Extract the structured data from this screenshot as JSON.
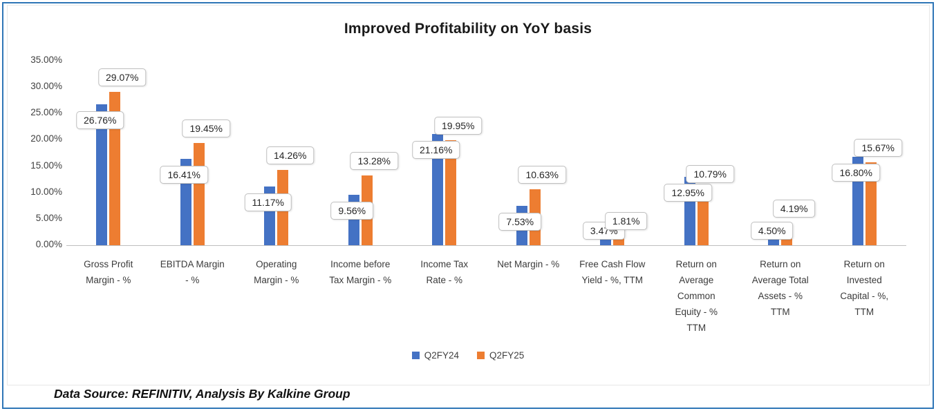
{
  "footer": {
    "text": "Data Source: REFINITIV, Analysis By Kalkine Group"
  },
  "colors": {
    "frame_border": "#2E75B6",
    "series_q2fy24": "#4472C4",
    "series_q2fy25": "#ED7D31",
    "axis_text": "#404040",
    "callout_border": "#BFBFBF",
    "axis_line": "#BFBFBF"
  },
  "chart_data": {
    "type": "bar",
    "title": "Improved Profitability on YoY basis",
    "categories": [
      "Gross Profit Margin - %",
      "EBITDA Margin - %",
      "Operating Margin - %",
      "Income before Tax Margin - %",
      "Income Tax Rate - %",
      "Net Margin - %",
      "Free Cash Flow Yield - %, TTM",
      "Return on Average Common Equity - % TTM",
      "Return on Average Total Assets - % TTM",
      "Return on Invested Capital - %, TTM"
    ],
    "category_lines": [
      [
        "Gross Profit",
        "Margin - %"
      ],
      [
        "EBITDA Margin",
        "- %"
      ],
      [
        "Operating",
        "Margin - %"
      ],
      [
        "Income before",
        "Tax Margin - %"
      ],
      [
        "Income Tax",
        "Rate - %"
      ],
      [
        "Net Margin - %"
      ],
      [
        "Free Cash Flow",
        "Yield - %, TTM"
      ],
      [
        "Return on",
        "Average",
        "Common",
        "Equity - %",
        "TTM"
      ],
      [
        "Return on",
        "Average Total",
        "Assets - %",
        "TTM"
      ],
      [
        "Return on",
        "Invested",
        "Capital - %,",
        "TTM"
      ]
    ],
    "series": [
      {
        "name": "Q2FY24",
        "color": "#4472C4",
        "values": [
          26.76,
          16.41,
          11.17,
          9.56,
          21.16,
          7.53,
          3.47,
          12.95,
          4.5,
          16.8
        ]
      },
      {
        "name": "Q2FY25",
        "color": "#ED7D31",
        "values": [
          29.07,
          19.45,
          14.26,
          13.28,
          19.95,
          10.63,
          1.81,
          10.79,
          4.19,
          15.67
        ]
      }
    ],
    "data_labels": [
      "26.76%",
      "16.41%",
      "11.17%",
      "9.56%",
      "21.16%",
      "7.53%",
      "3.47%",
      "12.95%",
      "4.50%",
      "16.80%",
      "29.07%",
      "19.45%",
      "14.26%",
      "13.28%",
      "19.95%",
      "10.63%",
      "1.81%",
      "10.79%",
      "4.19%",
      "15.67%"
    ],
    "y_ticks": [
      "0.00%",
      "5.00%",
      "10.00%",
      "15.00%",
      "20.00%",
      "25.00%",
      "30.00%",
      "35.00%"
    ],
    "ylim": [
      0,
      35
    ],
    "grid": false,
    "legend_position": "bottom"
  }
}
